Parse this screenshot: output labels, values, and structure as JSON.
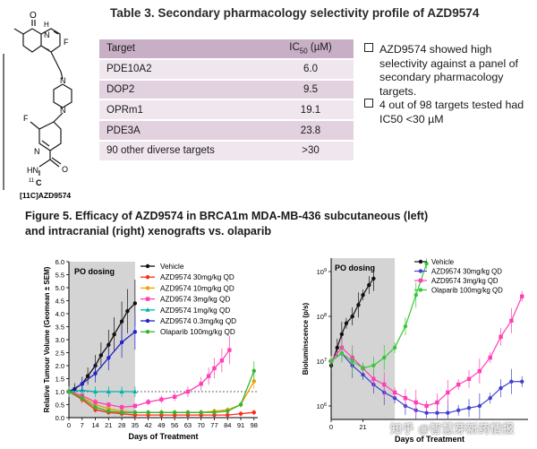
{
  "table": {
    "title": "Table 3. Secondary pharmacology selectivity profile of AZD9574",
    "header_target": "Target",
    "header_value_main": "IC",
    "header_value_sub": "50",
    "header_value_unit": " (µM)",
    "rows": [
      {
        "target": "PDE10A2",
        "value": "6.0"
      },
      {
        "target": "DOP2",
        "value": "9.5"
      },
      {
        "target": "OPRm1",
        "value": "19.1"
      },
      {
        "target": "PDE3A",
        "value": "23.8"
      },
      {
        "target": "90 other diverse targets",
        "value": ">30"
      }
    ]
  },
  "structure": {
    "caption": "[11C]AZD9574",
    "atoms": {
      "o1": "O",
      "nh1": "N",
      "h1": "H",
      "f1": "F",
      "n_pip1": "N",
      "n_pip2": "N",
      "f2": "F",
      "n_pyr": "N",
      "hn": "HN",
      "o2": "O",
      "c11": "11",
      "c": "C"
    }
  },
  "bullets": [
    "AZD9574 showed high selectivity against a panel of secondary pharmacology targets.",
    "4 out of 98 targets tested had IC50 <30 µM"
  ],
  "figure": {
    "title_line1": "Figure 5. Efficacy of AZD9574 in BRCA1m MDA-MB-436 subcutaneous (left)",
    "title_line2": "and intracranial (right) xenografts vs. olaparib"
  },
  "watermark": "知乎 @智慧芽新药情报",
  "colors": {
    "table_header": "#c9afc6",
    "table_odd": "#f0e7ee",
    "table_even": "#e2d2df",
    "dosing_band": "#d4d4d4"
  },
  "chart_data": [
    {
      "type": "line",
      "title": "",
      "xlabel": "Days of Treatment",
      "ylabel": "Relative Tumour Volume (Geomean ± SEM)",
      "xlim": [
        0,
        100
      ],
      "ylim": [
        0,
        6
      ],
      "xticks": [
        0,
        7,
        14,
        21,
        28,
        35,
        42,
        49,
        56,
        63,
        70,
        77,
        84,
        91,
        98
      ],
      "yticks": [
        "0.0",
        "0.5",
        "1.0",
        "1.5",
        "2.0",
        "2.5",
        "3.0",
        "3.5",
        "4.0",
        "4.5",
        "5.0",
        "5.5",
        "6.0"
      ],
      "dosing_label": "PO dosing",
      "dosing_range": [
        0,
        35
      ],
      "reference_line_y": 1.0,
      "series": [
        {
          "name": "Vehicle",
          "color": "#111111",
          "marker": "circle",
          "x": [
            0,
            3,
            7,
            10,
            14,
            17,
            21,
            24,
            28,
            31,
            35
          ],
          "y": [
            1.0,
            1.1,
            1.3,
            1.6,
            2.0,
            2.4,
            2.8,
            3.2,
            3.7,
            4.1,
            4.4
          ]
        },
        {
          "name": "AZD9574 30mg/kg QD",
          "color": "#ff2a1f",
          "marker": "circle",
          "x": [
            0,
            7,
            14,
            21,
            28,
            35,
            42,
            49,
            56,
            63,
            70,
            77,
            84,
            91,
            98
          ],
          "y": [
            1.0,
            0.7,
            0.3,
            0.2,
            0.15,
            0.1,
            0.1,
            0.1,
            0.1,
            0.1,
            0.1,
            0.1,
            0.1,
            0.15,
            0.2
          ]
        },
        {
          "name": "AZD9574 10mg/kg QD",
          "color": "#f0a000",
          "marker": "circle",
          "x": [
            0,
            7,
            14,
            21,
            28,
            35,
            42,
            49,
            56,
            63,
            70,
            77,
            84,
            91,
            98
          ],
          "y": [
            1.0,
            0.8,
            0.5,
            0.35,
            0.25,
            0.2,
            0.2,
            0.2,
            0.2,
            0.2,
            0.2,
            0.25,
            0.3,
            0.5,
            1.4
          ]
        },
        {
          "name": "AZD9574 3mg/kg QD",
          "color": "#ff3fb4",
          "marker": "square",
          "x": [
            0,
            7,
            14,
            21,
            28,
            35,
            42,
            49,
            56,
            63,
            70,
            74,
            77,
            81,
            85
          ],
          "y": [
            1.0,
            0.85,
            0.6,
            0.5,
            0.4,
            0.45,
            0.6,
            0.7,
            0.8,
            1.0,
            1.3,
            1.6,
            1.9,
            2.2,
            2.6
          ]
        },
        {
          "name": "AZD9574 1mg/kg QD",
          "color": "#00b3ad",
          "marker": "triangle",
          "x": [
            0,
            7,
            14,
            21,
            28,
            35
          ],
          "y": [
            1.0,
            1.05,
            1.0,
            1.0,
            1.0,
            1.0
          ]
        },
        {
          "name": "AZD9574 0.3mg/kg QD",
          "color": "#1f23c9",
          "marker": "circle",
          "x": [
            0,
            7,
            14,
            21,
            28,
            35
          ],
          "y": [
            1.0,
            1.3,
            1.7,
            2.3,
            2.9,
            3.3
          ]
        },
        {
          "name": "Olaparib 100mg/kg QD",
          "color": "#35b52e",
          "marker": "circle",
          "x": [
            0,
            7,
            14,
            21,
            28,
            35,
            42,
            49,
            56,
            63,
            70,
            77,
            84,
            91,
            98
          ],
          "y": [
            1.0,
            0.75,
            0.4,
            0.25,
            0.2,
            0.2,
            0.2,
            0.2,
            0.2,
            0.2,
            0.2,
            0.2,
            0.25,
            0.5,
            1.8
          ]
        }
      ]
    },
    {
      "type": "line",
      "title": "",
      "xlabel": "Days of Treatment",
      "ylabel": "Bioluminscence (p/s)",
      "yscale": "log",
      "xlim": [
        0,
        130
      ],
      "ylim": [
        500000,
        2000000000
      ],
      "xticks": [
        0,
        21
      ],
      "yticks": [
        "10^6",
        "10^7",
        "10^8",
        "10^9"
      ],
      "dosing_label": "PO dosing",
      "dosing_range": [
        0,
        42
      ],
      "series": [
        {
          "name": "Vehicle",
          "color": "#111111",
          "marker": "circle",
          "x": [
            0,
            4,
            7,
            10,
            14,
            18,
            21,
            25,
            28
          ],
          "y": [
            8000000,
            20000000,
            40000000,
            70000000,
            100000000,
            180000000,
            300000000,
            500000000,
            700000000
          ]
        },
        {
          "name": "AZD9574 30mg/kg QD",
          "color": "#4040d0",
          "marker": "circle",
          "x": [
            0,
            7,
            14,
            21,
            28,
            35,
            42,
            49,
            56,
            63,
            70,
            77,
            84,
            91,
            98,
            105,
            112,
            119,
            126
          ],
          "y": [
            10000000,
            15000000,
            8000000,
            5000000,
            3000000,
            2000000,
            1500000,
            1000000,
            800000,
            700000,
            700000,
            700000,
            800000,
            900000,
            1000000,
            1500000,
            2500000,
            3500000,
            3500000
          ]
        },
        {
          "name": "AZD9574 3mg/kg QD",
          "color": "#ff3fb4",
          "marker": "square",
          "x": [
            0,
            7,
            14,
            21,
            28,
            35,
            42,
            49,
            56,
            63,
            70,
            77,
            84,
            91,
            98,
            105,
            112,
            119,
            126
          ],
          "y": [
            10000000,
            20000000,
            12000000,
            7000000,
            4000000,
            3000000,
            2000000,
            1500000,
            1200000,
            1000000,
            1200000,
            2000000,
            3000000,
            4000000,
            6000000,
            12000000,
            35000000,
            80000000,
            280000000
          ]
        },
        {
          "name": "Olaparib 100mg/kg QD",
          "color": "#35c935",
          "marker": "circle",
          "x": [
            0,
            7,
            14,
            21,
            28,
            35,
            42,
            49,
            56,
            63
          ],
          "y": [
            10000000,
            15000000,
            10000000,
            7000000,
            8000000,
            12000000,
            20000000,
            60000000,
            300000000,
            1500000000
          ]
        }
      ]
    }
  ]
}
